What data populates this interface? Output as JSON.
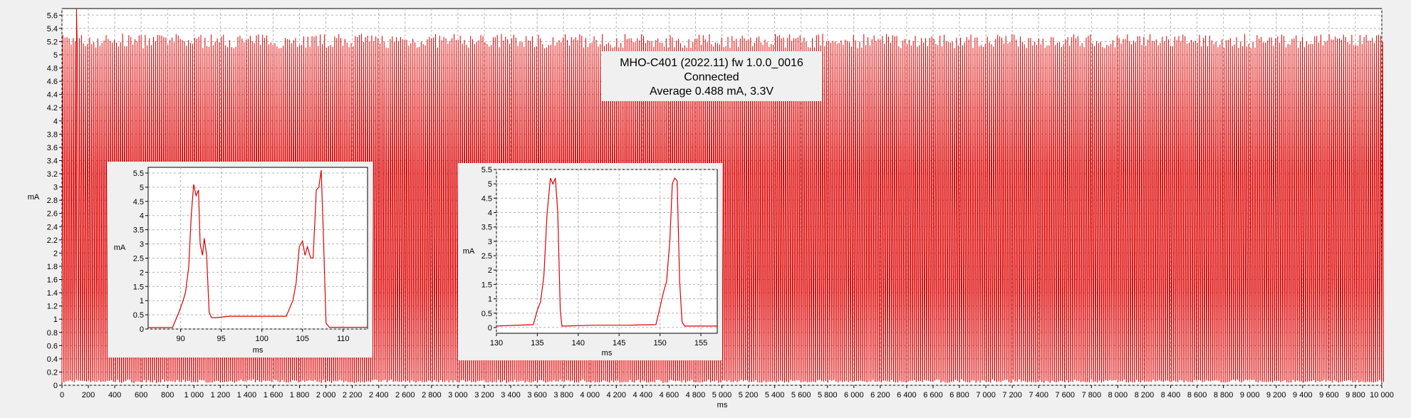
{
  "chart_data": [
    {
      "id": "main",
      "type": "line",
      "title": "",
      "xlabel": "ms",
      "ylabel": "mA",
      "xlim": [
        0,
        10000
      ],
      "ylim": [
        0,
        5.7
      ],
      "xticks": [
        0,
        200,
        400,
        600,
        800,
        1000,
        1200,
        1400,
        1600,
        1800,
        2000,
        2200,
        2400,
        2600,
        2800,
        3000,
        3200,
        3400,
        3600,
        3800,
        4000,
        4200,
        4400,
        4600,
        4800,
        5000,
        5200,
        5400,
        5600,
        5800,
        6000,
        6200,
        6400,
        6600,
        6800,
        7000,
        7200,
        7400,
        7600,
        7800,
        8000,
        8200,
        8400,
        8600,
        8800,
        9000,
        9200,
        9400,
        9600,
        9800,
        10000
      ],
      "xtick_labels": [
        "0",
        "200",
        "400",
        "600",
        "800",
        "1 000",
        "1 200",
        "1 400",
        "1 600",
        "1 800",
        "2 000",
        "2 200",
        "2 400",
        "2 600",
        "2 800",
        "3 000",
        "3 200",
        "3 400",
        "3 600",
        "3 800",
        "4 000",
        "4 200",
        "4 400",
        "4 600",
        "4 800",
        "5 000",
        "5 200",
        "5 400",
        "5 600",
        "5 800",
        "6 000",
        "6 200",
        "6 400",
        "6 600",
        "6 800",
        "7 000",
        "7 200",
        "7 400",
        "7 600",
        "7 800",
        "8 000",
        "8 200",
        "8 400",
        "8 600",
        "8 800",
        "9 000",
        "9 200",
        "9 400",
        "9 600",
        "9 800",
        "10 000"
      ],
      "yticks": [
        0,
        0.2,
        0.4,
        0.6,
        0.8,
        1,
        1.2,
        1.4,
        1.6,
        1.8,
        2,
        2.2,
        2.4,
        2.6,
        2.8,
        3,
        3.2,
        3.4,
        3.6,
        3.8,
        4,
        4.2,
        4.4,
        4.6,
        4.8,
        5,
        5.2,
        5.4,
        5.6
      ],
      "ytick_labels": [
        "0",
        "0.2",
        "0.4",
        "0.6",
        "0.8",
        "1",
        "1.2",
        "1.4",
        "1.6",
        "1.8",
        "2",
        "2.2",
        "2.4",
        "2.6",
        "2.8",
        "3",
        "3.2",
        "3.4",
        "3.6",
        "3.8",
        "4",
        "4.2",
        "4.4",
        "4.6",
        "4.8",
        "5",
        "5.2",
        "5.4",
        "5.6"
      ],
      "grid": true,
      "series": [
        {
          "color": "#dd0000",
          "pulse_period_ms": 15.6,
          "baseline_mA": 0.04,
          "peak_mA": 5.2,
          "max_peak_mA": 5.7
        }
      ]
    },
    {
      "id": "inset1",
      "type": "line",
      "xlabel": "ms",
      "ylabel": "mA",
      "xlim": [
        86,
        113
      ],
      "ylim": [
        0,
        5.7
      ],
      "xticks": [
        90,
        95,
        100,
        105,
        110
      ],
      "xtick_labels": [
        "90",
        "95",
        "100",
        "105",
        "110"
      ],
      "yticks": [
        0,
        0.5,
        1,
        1.5,
        2,
        2.5,
        3,
        3.5,
        4,
        4.5,
        5,
        5.5
      ],
      "ytick_labels": [
        "0",
        "0.5",
        "1",
        "1.5",
        "2",
        "2.5",
        "3",
        "3.5",
        "4",
        "4.5",
        "5",
        "5.5"
      ],
      "grid": true,
      "series": [
        {
          "color": "#dd0000",
          "x": [
            86,
            89,
            89.8,
            90.3,
            90.6,
            91,
            91.3,
            91.6,
            91.9,
            92.2,
            92.4,
            92.7,
            92.9,
            93.2,
            93.5,
            93.8,
            94.3,
            96,
            100,
            103,
            103.8,
            104.2,
            104.6,
            105,
            105.3,
            105.6,
            106,
            106.3,
            106.7,
            107,
            107.3,
            107.6,
            107.9,
            108.3,
            109,
            113
          ],
          "y": [
            0.05,
            0.05,
            0.6,
            1.0,
            1.3,
            2.2,
            4.0,
            5.1,
            4.7,
            4.9,
            3.0,
            2.6,
            3.2,
            2.6,
            0.6,
            0.4,
            0.4,
            0.45,
            0.45,
            0.45,
            1.0,
            1.6,
            2.9,
            3.1,
            2.6,
            2.9,
            2.5,
            2.5,
            4.9,
            5.0,
            5.6,
            3.0,
            0.2,
            0.06,
            0.06,
            0.06
          ]
        }
      ]
    },
    {
      "id": "inset2",
      "type": "line",
      "xlabel": "ms",
      "ylabel": "mA",
      "xlim": [
        130,
        157
      ],
      "ylim": [
        -0.2,
        5.5
      ],
      "xticks": [
        130,
        135,
        140,
        145,
        150,
        155
      ],
      "xtick_labels": [
        "130",
        "135",
        "140",
        "145",
        "150",
        "155"
      ],
      "yticks": [
        0,
        0.5,
        1,
        1.5,
        2,
        2.5,
        3,
        3.5,
        4,
        4.5,
        5,
        5.5
      ],
      "ytick_labels": [
        "0",
        "0.5",
        "1",
        "1.5",
        "2",
        "2.5",
        "3",
        "3.5",
        "4",
        "4.5",
        "5",
        "5.5"
      ],
      "grid": true,
      "series": [
        {
          "color": "#dd0000",
          "x": [
            130,
            134.5,
            135,
            135.4,
            135.8,
            136.2,
            136.6,
            136.9,
            137.2,
            137.5,
            137.8,
            138,
            138.4,
            142,
            146,
            149.5,
            150,
            150.4,
            150.8,
            151.2,
            151.5,
            151.8,
            152.1,
            152.4,
            152.7,
            153,
            157
          ],
          "y": [
            0.05,
            0.1,
            0.6,
            0.9,
            1.8,
            4.0,
            5.2,
            5.0,
            5.2,
            4.0,
            0.6,
            0.05,
            0.05,
            0.08,
            0.08,
            0.1,
            0.7,
            1.2,
            1.6,
            3.0,
            5.0,
            5.2,
            5.1,
            1.6,
            0.2,
            0.05,
            0.05
          ]
        }
      ]
    }
  ],
  "info": {
    "line1": "MHO-C401 (2022.11) fw 1.0.0_0016",
    "line2": "Connected",
    "line3": "Average 0.488 mA, 3.3V"
  }
}
